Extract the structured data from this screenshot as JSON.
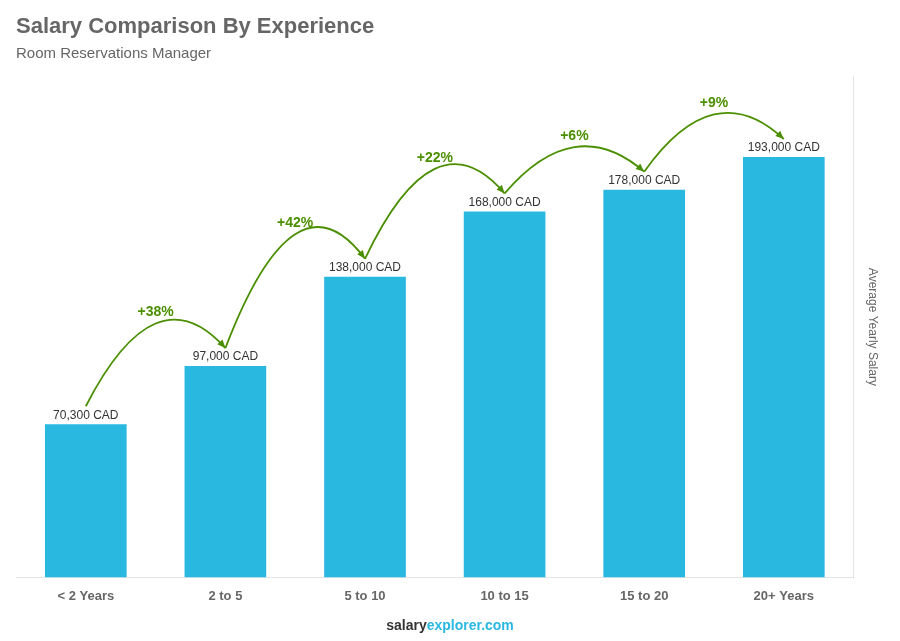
{
  "chart_data": {
    "type": "bar",
    "title": "Salary Comparison By Experience",
    "subtitle": "Room Reservations Manager",
    "categories": [
      "< 2 Years",
      "2 to 5",
      "5 to 10",
      "10 to 15",
      "15 to 20",
      "20+ Years"
    ],
    "values": [
      70300,
      97000,
      138000,
      168000,
      178000,
      193000
    ],
    "value_labels": [
      "70,300 CAD",
      "97,000 CAD",
      "138,000 CAD",
      "168,000 CAD",
      "178,000 CAD",
      "193,000 CAD"
    ],
    "data_labels": true,
    "pct_changes": [
      null,
      "+38%",
      "+42%",
      "+22%",
      "+6%",
      "+9%"
    ],
    "color": "#29b8e0",
    "ylabel": "Average Yearly Salary",
    "ylim": [
      0,
      230000
    ],
    "tick_labels": "x",
    "grid": false,
    "footer": [
      "salary",
      "explorer.com"
    ]
  }
}
